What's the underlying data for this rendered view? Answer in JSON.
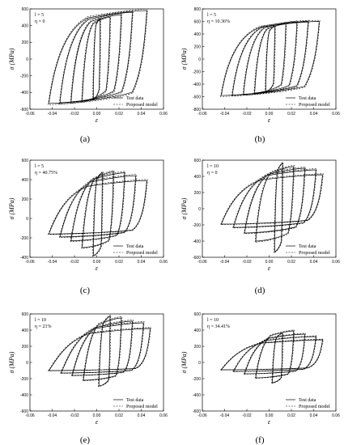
{
  "figure": {
    "captions": [
      "(a)",
      "(b)",
      "(c)",
      "(d)",
      "(e)",
      "(f)"
    ]
  },
  "chart_data": [
    {
      "type": "line",
      "panel": "(a)",
      "ylabel": "σ (MPa)",
      "xlabel": "ε",
      "annotations": [
        "l = 5",
        "η = 0"
      ],
      "xlim": [
        -0.06,
        0.06
      ],
      "ylim": [
        -600,
        600
      ],
      "xticks": [
        "-0.06",
        "-0.04",
        "-0.02",
        "0.00",
        "0.02",
        "0.04",
        "0.06"
      ],
      "yticks": [
        "-600",
        "-400",
        "-200",
        "0",
        "200",
        "400",
        "600"
      ],
      "series": [
        {
          "name": "Test data"
        },
        {
          "name": "Proposed model"
        }
      ],
      "loops": [
        {
          "x1": -0.003,
          "x2": 0.003,
          "top": 480,
          "bot": -480
        },
        {
          "x1": -0.013,
          "x2": 0.012,
          "top": 500,
          "bot": -500
        },
        {
          "x1": -0.023,
          "x2": 0.022,
          "top": 530,
          "bot": -510
        },
        {
          "x1": -0.033,
          "x2": 0.032,
          "top": 560,
          "bot": -520
        },
        {
          "x1": -0.043,
          "x2": 0.045,
          "top": 580,
          "bot": -530
        }
      ],
      "legend": "bottom-right",
      "grid": false
    },
    {
      "type": "line",
      "panel": "(b)",
      "ylabel": "σ (MPa)",
      "xlabel": "ε",
      "annotations": [
        "l = 5",
        "η = 10.36%"
      ],
      "xlim": [
        -0.06,
        0.06
      ],
      "ylim": [
        -800,
        800
      ],
      "xticks": [
        "-0.06",
        "-0.04",
        "-0.02",
        "0.00",
        "0.02",
        "0.04",
        "0.06"
      ],
      "yticks": [
        "-800",
        "-600",
        "-400",
        "-200",
        "0",
        "200",
        "400",
        "600",
        "800"
      ],
      "series": [
        {
          "name": "Test data"
        },
        {
          "name": "Proposed model"
        }
      ],
      "loops": [
        {
          "x1": -0.003,
          "x2": 0.005,
          "top": 520,
          "bot": -520
        },
        {
          "x1": -0.013,
          "x2": 0.015,
          "top": 560,
          "bot": -540
        },
        {
          "x1": -0.023,
          "x2": 0.025,
          "top": 590,
          "bot": -560
        },
        {
          "x1": -0.033,
          "x2": 0.035,
          "top": 600,
          "bot": -570
        },
        {
          "x1": -0.043,
          "x2": 0.045,
          "top": 600,
          "bot": -580
        }
      ],
      "legend": "bottom-right",
      "grid": false
    },
    {
      "type": "line",
      "panel": "(c)",
      "ylabel": "σ (MPa)",
      "xlabel": "ε",
      "annotations": [
        "l = 5",
        "η = 40.75%"
      ],
      "xlim": [
        -0.06,
        0.06
      ],
      "ylim": [
        -400,
        600
      ],
      "xticks": [
        "-0.06",
        "-0.04",
        "-0.02",
        "0.00",
        "0.02",
        "0.04",
        "0.06"
      ],
      "yticks": [
        "-400",
        "-200",
        "0",
        "200",
        "400",
        "600"
      ],
      "series": [
        {
          "name": "Test data"
        },
        {
          "name": "Proposed model"
        }
      ],
      "loops": [
        {
          "x1": -0.003,
          "x2": 0.005,
          "top": 470,
          "bot": -380
        },
        {
          "x1": -0.013,
          "x2": 0.015,
          "top": 480,
          "bot": -300
        },
        {
          "x1": -0.023,
          "x2": 0.025,
          "top": 470,
          "bot": -230
        },
        {
          "x1": -0.033,
          "x2": 0.035,
          "top": 440,
          "bot": -190
        },
        {
          "x1": -0.043,
          "x2": 0.045,
          "top": 390,
          "bot": -160
        }
      ],
      "legend": "bottom-right",
      "grid": false
    },
    {
      "type": "line",
      "panel": "(d)",
      "ylabel": "σ (MPa)",
      "xlabel": "ε",
      "annotations": [
        "l = 10",
        "η = 0"
      ],
      "xlim": [
        -0.06,
        0.06
      ],
      "ylim": [
        -600,
        600
      ],
      "xticks": [
        "-0.06",
        "-0.04",
        "-0.02",
        "0.00",
        "0.02",
        "0.04",
        "0.06"
      ],
      "yticks": [
        "-600",
        "-400",
        "-200",
        "0",
        "200",
        "400",
        "600"
      ],
      "series": [
        {
          "name": "Test data"
        },
        {
          "name": "Proposed model"
        }
      ],
      "loops": [
        {
          "x1": 0.005,
          "x2": 0.012,
          "top": 560,
          "bot": -530
        },
        {
          "x1": -0.012,
          "x2": 0.022,
          "top": 520,
          "bot": -400
        },
        {
          "x1": -0.022,
          "x2": 0.032,
          "top": 500,
          "bot": -300
        },
        {
          "x1": -0.032,
          "x2": 0.042,
          "top": 480,
          "bot": -230
        },
        {
          "x1": -0.043,
          "x2": 0.048,
          "top": 420,
          "bot": -190
        }
      ],
      "legend": "bottom-right",
      "grid": false
    },
    {
      "type": "line",
      "panel": "(e)",
      "ylabel": "σ (MPa)",
      "xlabel": "ε",
      "annotations": [
        "l = 10",
        "η = 21%"
      ],
      "xlim": [
        -0.06,
        0.06
      ],
      "ylim": [
        -600,
        600
      ],
      "xticks": [
        "-0.06",
        "-0.04",
        "-0.02",
        "0.00",
        "0.02",
        "0.04",
        "0.06"
      ],
      "yticks": [
        "-600",
        "-400",
        "-200",
        "0",
        "200",
        "400",
        "600"
      ],
      "series": [
        {
          "name": "Test data"
        },
        {
          "name": "Proposed model"
        }
      ],
      "loops": [
        {
          "x1": 0.002,
          "x2": 0.012,
          "top": 570,
          "bot": -290
        },
        {
          "x1": -0.012,
          "x2": 0.022,
          "top": 550,
          "bot": -220
        },
        {
          "x1": -0.022,
          "x2": 0.032,
          "top": 510,
          "bot": -160
        },
        {
          "x1": -0.032,
          "x2": 0.042,
          "top": 490,
          "bot": -130
        },
        {
          "x1": -0.043,
          "x2": 0.048,
          "top": 420,
          "bot": -100
        }
      ],
      "legend": "bottom-right",
      "grid": false
    },
    {
      "type": "line",
      "panel": "(f)",
      "ylabel": "σ (MPa)",
      "xlabel": "ε",
      "annotations": [
        "l = 10",
        "η = 34.41%"
      ],
      "xlim": [
        -0.06,
        0.06
      ],
      "ylim": [
        -600,
        600
      ],
      "xticks": [
        "-0.06",
        "-0.04",
        "-0.02",
        "0.00",
        "0.02",
        "0.04",
        "0.06"
      ],
      "yticks": [
        "-600",
        "-400",
        "-200",
        "0",
        "200",
        "400",
        "600"
      ],
      "series": [
        {
          "name": "Test data"
        },
        {
          "name": "Proposed model"
        }
      ],
      "loops": [
        {
          "x1": 0.003,
          "x2": 0.012,
          "top": 360,
          "bot": -250
        },
        {
          "x1": -0.012,
          "x2": 0.022,
          "top": 390,
          "bot": -190
        },
        {
          "x1": -0.022,
          "x2": 0.032,
          "top": 350,
          "bot": -140
        },
        {
          "x1": -0.032,
          "x2": 0.042,
          "top": 320,
          "bot": -110
        },
        {
          "x1": -0.043,
          "x2": 0.048,
          "top": 280,
          "bot": -90
        }
      ],
      "legend": "bottom-right",
      "grid": false
    }
  ]
}
